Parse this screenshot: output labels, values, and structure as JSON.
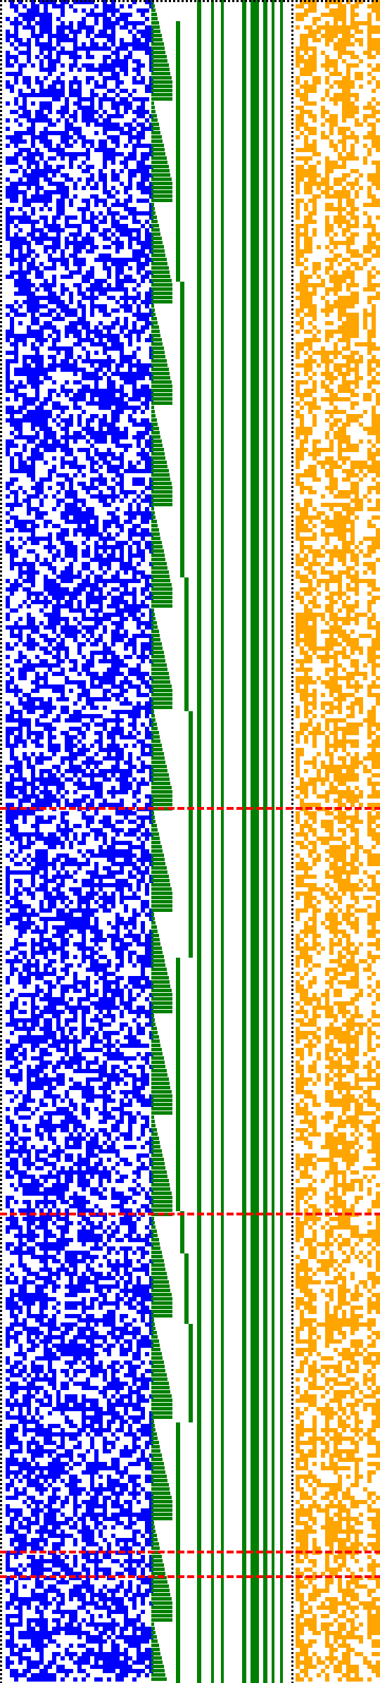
{
  "canvas": {
    "colors": {
      "background": "#ffffff",
      "left_cells": "#0000ff",
      "middle_bars": "#008000",
      "right_cells": "#ffa500",
      "marker_lines": "#ff0000",
      "dotted_borders": "#000000"
    }
  },
  "panels": {
    "left": {
      "description_icon": "blue-cell-grid"
    },
    "middle": {
      "description_icon": "green-bar-stack"
    },
    "right": {
      "description_icon": "orange-cell-grid"
    }
  }
}
